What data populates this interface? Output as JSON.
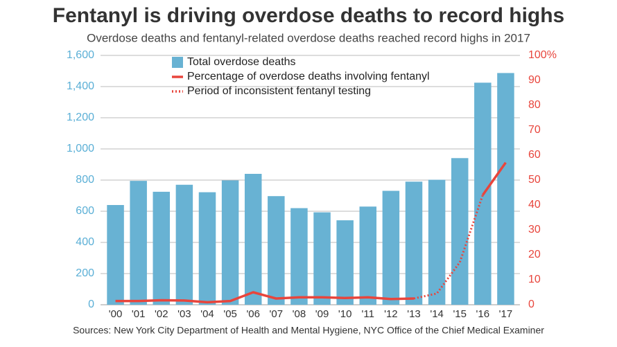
{
  "chart_data": {
    "type": "bar",
    "title": "Fentanyl is driving overdose deaths to record highs",
    "subtitle": "Overdose deaths and fentanyl-related overdose deaths reached record highs in 2017",
    "source": "Sources: New York City Department of Health and Mental Hygiene, NYC Office of the Chief Medical Examiner",
    "categories": [
      "'00",
      "'01",
      "'02",
      "'03",
      "'04",
      "'05",
      "'06",
      "'07",
      "'08",
      "'09",
      "'10",
      "'11",
      "'12",
      "'13",
      "'14",
      "'15",
      "'16",
      "'17"
    ],
    "series": [
      {
        "name": "Total overdose deaths",
        "color": "#68b2d3",
        "kind": "bar",
        "values": [
          640,
          795,
          725,
          770,
          722,
          798,
          840,
          697,
          620,
          593,
          542,
          630,
          731,
          790,
          802,
          941,
          1425,
          1487
        ]
      },
      {
        "name": "Percentage of overdose deaths involving fentanyl",
        "color": "#e8453c",
        "kind": "line",
        "axis": "y2",
        "values": [
          1.5,
          1.5,
          1.8,
          1.7,
          1.0,
          1.5,
          5,
          2.5,
          3,
          3,
          2.7,
          3,
          2.3,
          2.5,
          null,
          null,
          44,
          57
        ]
      },
      {
        "name": "Period of inconsistent fentanyl testing",
        "color": "#e8453c",
        "kind": "dotted",
        "axis": "y2",
        "values": [
          null,
          null,
          null,
          null,
          null,
          null,
          null,
          null,
          null,
          null,
          null,
          null,
          null,
          2.5,
          4.5,
          17,
          44,
          null
        ]
      }
    ],
    "ylim": [
      0,
      1600
    ],
    "yticks": [
      0,
      200,
      400,
      600,
      800,
      {
        "value": 1000,
        "label": "1,000"
      },
      {
        "value": 1200,
        "label": "1,200"
      },
      {
        "value": 1400,
        "label": "1,400"
      },
      {
        "value": 1600,
        "label": "1,600"
      }
    ],
    "y2lim": [
      0,
      100
    ],
    "y2ticks": [
      0,
      10,
      20,
      30,
      40,
      50,
      60,
      70,
      80,
      90,
      {
        "value": 100,
        "label": "100%"
      }
    ],
    "grid": true
  }
}
